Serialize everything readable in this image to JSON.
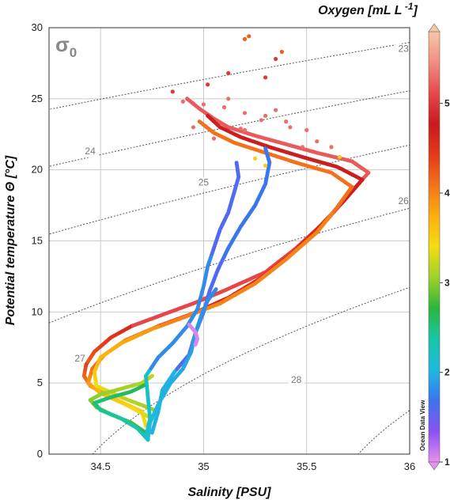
{
  "chart_data": {
    "type": "scatter",
    "title": "",
    "xlabel": "Salinity [PSU]",
    "ylabel": "Potential  temperature Θ [°C]",
    "xlim": [
      34.25,
      36.0
    ],
    "ylim": [
      0,
      30
    ],
    "xticks": [
      34.5,
      35,
      35.5,
      36
    ],
    "xtick_labels": [
      "34.5",
      "35",
      "35.5",
      "36"
    ],
    "yticks": [
      0,
      5,
      10,
      15,
      20,
      25,
      30
    ],
    "ytick_labels": [
      "0",
      "5",
      "10",
      "15",
      "20",
      "25",
      "30"
    ],
    "grid": true,
    "density_symbol": "σ0",
    "density_symbol_base": "σ",
    "density_symbol_sub": "0",
    "isopycnals": [
      {
        "label": "23",
        "sigma": 23,
        "label_at": [
          35.97,
          28.3
        ]
      },
      {
        "label": "24",
        "sigma": 24,
        "label_at": [
          34.45,
          21.1
        ]
      },
      {
        "label": "25",
        "sigma": 25,
        "label_at": [
          35.0,
          18.9
        ]
      },
      {
        "label": "26",
        "sigma": 26,
        "label_at": [
          35.97,
          17.6
        ]
      },
      {
        "label": "27",
        "sigma": 27,
        "label_at": [
          34.4,
          6.5
        ]
      },
      {
        "label": "28",
        "sigma": 28,
        "label_at": [
          35.45,
          5.0
        ]
      }
    ],
    "colorbar": {
      "title": "Oxygen [mL L -1]",
      "title_base": "Oxygen [mL L",
      "title_exp": " -1",
      "title_end": "]",
      "min": 1,
      "max": 5.8,
      "ticks": [
        1,
        2,
        3,
        4,
        5
      ],
      "tick_labels": [
        "1",
        "2",
        "3",
        "4",
        "5"
      ],
      "colors": [
        "#e88ff0",
        "#8a52f0",
        "#3b74ee",
        "#1fb8e0",
        "#17c7a4",
        "#2cb53c",
        "#9fd12a",
        "#f3dc14",
        "#fbb010",
        "#f2741a",
        "#e23a1a",
        "#c81a1c",
        "#e6484c",
        "#f08e84",
        "#f7c7a6"
      ]
    },
    "watermark": "Ocean Data View",
    "series": [
      {
        "profile": "main-red-warm",
        "points": [
          [
            34.72,
            2.0
          ],
          [
            34.7,
            3.0
          ],
          [
            34.55,
            4.0
          ],
          [
            34.45,
            4.8
          ],
          [
            34.42,
            5.5
          ],
          [
            34.43,
            6.3
          ],
          [
            34.47,
            7.2
          ],
          [
            34.55,
            8.2
          ],
          [
            34.65,
            9.0
          ],
          [
            34.8,
            9.8
          ],
          [
            34.95,
            10.6
          ],
          [
            35.1,
            11.5
          ],
          [
            35.3,
            12.8
          ],
          [
            35.45,
            14.5
          ],
          [
            35.6,
            16.5
          ],
          [
            35.72,
            18.5
          ],
          [
            35.8,
            19.8
          ],
          [
            35.72,
            20.6
          ],
          [
            35.55,
            21.2
          ],
          [
            35.4,
            21.8
          ],
          [
            35.25,
            22.4
          ],
          [
            35.12,
            23.0
          ],
          [
            35.05,
            23.6
          ],
          [
            34.98,
            24.3
          ],
          [
            34.92,
            25.0
          ]
        ]
      },
      {
        "profile": "main-orange",
        "points": [
          [
            34.75,
            2.5
          ],
          [
            34.62,
            3.5
          ],
          [
            34.5,
            4.3
          ],
          [
            34.44,
            5.0
          ],
          [
            34.46,
            6.0
          ],
          [
            34.52,
            7.0
          ],
          [
            34.62,
            8.0
          ],
          [
            34.78,
            9.0
          ],
          [
            34.95,
            9.9
          ],
          [
            35.12,
            11.0
          ],
          [
            35.28,
            12.4
          ],
          [
            35.42,
            14.0
          ],
          [
            35.55,
            15.8
          ],
          [
            35.68,
            17.8
          ],
          [
            35.77,
            19.3
          ],
          [
            35.65,
            20.2
          ],
          [
            35.48,
            20.9
          ],
          [
            35.32,
            21.6
          ],
          [
            35.18,
            22.3
          ],
          [
            35.08,
            23.0
          ],
          [
            35.02,
            23.8
          ]
        ]
      },
      {
        "profile": "main-yellow",
        "points": [
          [
            34.78,
            3.0
          ],
          [
            34.6,
            4.0
          ],
          [
            34.48,
            4.8
          ],
          [
            34.47,
            5.8
          ],
          [
            34.5,
            6.8
          ],
          [
            34.6,
            7.8
          ],
          [
            34.75,
            8.8
          ],
          [
            34.9,
            9.6
          ],
          [
            35.08,
            10.6
          ],
          [
            35.25,
            12.0
          ],
          [
            35.4,
            13.7
          ],
          [
            35.55,
            15.6
          ],
          [
            35.65,
            17.4
          ],
          [
            35.72,
            18.8
          ],
          [
            35.62,
            19.8
          ],
          [
            35.45,
            20.5
          ],
          [
            35.3,
            21.2
          ],
          [
            35.15,
            21.9
          ],
          [
            35.05,
            22.6
          ],
          [
            34.98,
            23.4
          ]
        ]
      },
      {
        "profile": "deep-green",
        "points": [
          [
            34.72,
            1.5
          ],
          [
            34.65,
            2.2
          ],
          [
            34.55,
            2.8
          ],
          [
            34.48,
            3.3
          ],
          [
            34.45,
            3.8
          ],
          [
            34.5,
            4.2
          ],
          [
            34.6,
            4.6
          ],
          [
            34.7,
            5.0
          ],
          [
            34.75,
            5.5
          ]
        ]
      },
      {
        "profile": "deep-teal",
        "points": [
          [
            34.73,
            1.0
          ],
          [
            34.68,
            1.8
          ],
          [
            34.6,
            2.5
          ],
          [
            34.5,
            3.1
          ],
          [
            34.47,
            3.6
          ],
          [
            34.55,
            4.0
          ],
          [
            34.65,
            4.4
          ],
          [
            34.72,
            4.9
          ]
        ]
      },
      {
        "profile": "purple-1",
        "points": [
          [
            34.72,
            1.2
          ],
          [
            34.74,
            2.5
          ],
          [
            34.73,
            4.0
          ],
          [
            34.72,
            5.5
          ],
          [
            34.78,
            6.8
          ],
          [
            34.85,
            7.8
          ],
          [
            34.92,
            9.0
          ],
          [
            34.97,
            10.2
          ],
          [
            35.0,
            11.8
          ],
          [
            35.02,
            13.2
          ],
          [
            35.05,
            14.5
          ],
          [
            35.08,
            15.8
          ],
          [
            35.12,
            17.0
          ],
          [
            35.15,
            18.5
          ],
          [
            35.17,
            19.5
          ],
          [
            35.16,
            20.5
          ]
        ]
      },
      {
        "profile": "purple-2",
        "points": [
          [
            34.75,
            1.5
          ],
          [
            34.78,
            3.0
          ],
          [
            34.8,
            4.5
          ],
          [
            34.86,
            5.8
          ],
          [
            34.93,
            7.0
          ],
          [
            34.96,
            8.5
          ],
          [
            35.0,
            10.0
          ],
          [
            35.03,
            11.5
          ],
          [
            35.07,
            13.0
          ],
          [
            35.12,
            14.5
          ],
          [
            35.18,
            16.0
          ],
          [
            35.25,
            17.5
          ],
          [
            35.3,
            19.0
          ],
          [
            35.32,
            20.5
          ],
          [
            35.3,
            21.5
          ]
        ]
      },
      {
        "profile": "blue",
        "points": [
          [
            34.73,
            1.1
          ],
          [
            34.74,
            2.2
          ],
          [
            34.78,
            3.5
          ],
          [
            34.84,
            5.0
          ],
          [
            34.9,
            6.0
          ],
          [
            34.94,
            7.2
          ],
          [
            34.96,
            8.5
          ],
          [
            34.99,
            9.8
          ],
          [
            35.02,
            10.8
          ],
          [
            35.06,
            11.6
          ]
        ]
      },
      {
        "profile": "lilac",
        "points": [
          [
            34.93,
            9.1
          ],
          [
            34.96,
            8.6
          ],
          [
            34.97,
            8.1
          ],
          [
            34.96,
            7.7
          ]
        ]
      },
      {
        "profile": "surface-scatter",
        "points": [
          [
            34.85,
            25.5
          ],
          [
            34.9,
            24.8
          ],
          [
            35.0,
            24.6
          ],
          [
            35.1,
            24.4
          ],
          [
            35.2,
            24.0
          ],
          [
            35.3,
            23.8
          ],
          [
            35.4,
            23.4
          ],
          [
            35.5,
            22.8
          ],
          [
            35.55,
            22.0
          ],
          [
            34.95,
            23.0
          ],
          [
            35.05,
            22.2
          ],
          [
            35.2,
            22.8
          ],
          [
            35.28,
            23.5
          ],
          [
            35.35,
            24.2
          ],
          [
            35.42,
            23.0
          ],
          [
            35.48,
            21.6
          ],
          [
            35.12,
            25.0
          ],
          [
            35.02,
            26.0
          ],
          [
            35.12,
            26.8
          ],
          [
            35.2,
            29.2
          ],
          [
            35.22,
            29.4
          ],
          [
            35.3,
            26.5
          ],
          [
            35.35,
            27.8
          ],
          [
            35.38,
            28.3
          ],
          [
            35.25,
            20.8
          ],
          [
            35.3,
            20.3
          ],
          [
            35.18,
            22.9
          ],
          [
            35.62,
            21.6
          ],
          [
            35.66,
            20.9
          ]
        ]
      }
    ]
  }
}
